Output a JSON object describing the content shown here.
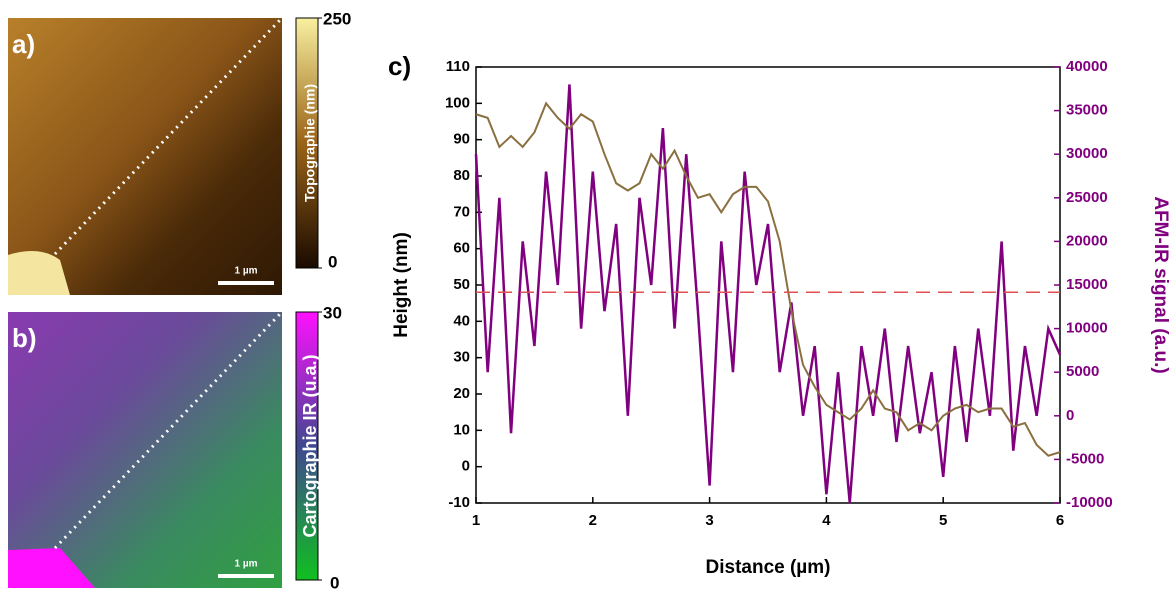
{
  "panels": [
    {
      "label": "a)",
      "scale_bar": "1 µm",
      "colorbar": {
        "title": "Topographie (nm)",
        "ticks": [
          0,
          250
        ]
      }
    },
    {
      "label": "b)",
      "scale_bar": "1 µm",
      "colorbar": {
        "title": "Cartographie IR (u.a.)",
        "ticks": [
          0,
          30
        ]
      }
    }
  ],
  "chart_data": {
    "type": "line",
    "label": "c)",
    "x_label": "Distance (µm)",
    "y_label": "Height (nm)",
    "y2_label": "AFM-IR signal (a.u.)",
    "xlim": [
      1,
      6
    ],
    "xticks": [
      1,
      2,
      3,
      4,
      5,
      6
    ],
    "ylim": [
      -10,
      110
    ],
    "yticks": [
      -10,
      0,
      10,
      20,
      30,
      40,
      50,
      60,
      70,
      80,
      90,
      100,
      110
    ],
    "y2lim": [
      -10000,
      40000
    ],
    "y2ticks": [
      -10000,
      -5000,
      0,
      5000,
      10000,
      15000,
      20000,
      25000,
      30000,
      35000,
      40000
    ],
    "x": [
      1.0,
      1.1,
      1.2,
      1.3,
      1.4,
      1.5,
      1.6,
      1.7,
      1.8,
      1.9,
      2.0,
      2.1,
      2.2,
      2.3,
      2.4,
      2.5,
      2.6,
      2.7,
      2.8,
      2.9,
      3.0,
      3.1,
      3.2,
      3.3,
      3.4,
      3.5,
      3.6,
      3.7,
      3.8,
      3.9,
      4.0,
      4.1,
      4.2,
      4.3,
      4.4,
      4.5,
      4.6,
      4.7,
      4.8,
      4.9,
      5.0,
      5.1,
      5.2,
      5.3,
      5.4,
      5.5,
      5.6,
      5.7,
      5.8,
      5.9,
      6.0
    ],
    "series": [
      {
        "color": "#8a7040",
        "values": [
          97,
          96,
          88,
          91,
          88,
          92,
          100,
          96,
          93,
          97,
          95,
          86,
          78,
          76,
          78,
          86,
          82,
          87,
          80,
          74,
          75,
          70,
          75,
          77,
          77,
          73,
          62,
          43,
          28,
          22,
          17,
          15,
          13,
          16,
          21,
          16,
          15,
          10,
          12,
          10,
          14,
          16,
          17,
          15,
          16,
          16,
          11,
          12,
          6,
          3,
          4
        ]
      },
      {
        "color": "#800080",
        "axis": "y2",
        "values": [
          30000,
          5000,
          25000,
          -2000,
          20000,
          8000,
          28000,
          15000,
          38000,
          10000,
          28000,
          12000,
          22000,
          0,
          25000,
          15000,
          33000,
          10000,
          30000,
          12000,
          -8000,
          20000,
          5000,
          28000,
          15000,
          22000,
          5000,
          13000,
          0,
          8000,
          -9000,
          5000,
          -10000,
          8000,
          0,
          10000,
          -3000,
          8000,
          -2000,
          5000,
          -7000,
          8000,
          -3000,
          10000,
          0,
          20000,
          -4000,
          8000,
          0,
          10000,
          7000
        ]
      }
    ],
    "reference_line": {
      "y": 48,
      "color": "#e05050"
    }
  }
}
